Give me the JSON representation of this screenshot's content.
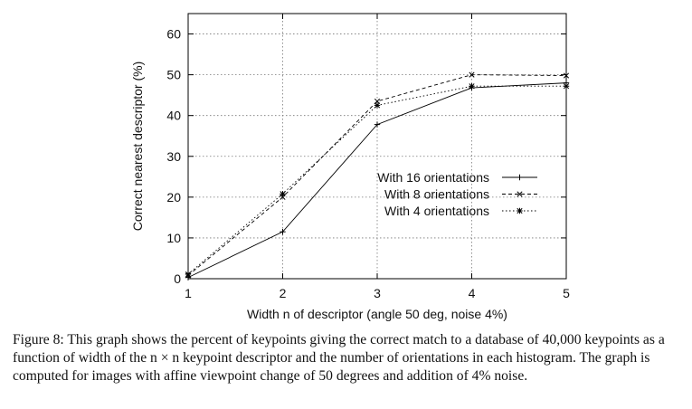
{
  "chart_data": {
    "type": "line",
    "x": [
      1,
      2,
      3,
      4,
      5
    ],
    "xlabel": "Width n of descriptor (angle 50 deg, noise 4%)",
    "ylabel": "Correct nearest descriptor (%)",
    "xlim": [
      1,
      5
    ],
    "ylim": [
      0,
      65
    ],
    "xticks": [
      "1",
      "2",
      "3",
      "4",
      "5"
    ],
    "yticks": [
      "0",
      "10",
      "20",
      "30",
      "40",
      "50",
      "60"
    ],
    "grid": true,
    "legend_position": "center-right",
    "series": [
      {
        "name": "With 16 orientations",
        "values": [
          0.3,
          11.5,
          37.8,
          46.8,
          48.0
        ],
        "dash": "solid",
        "marker": "plus"
      },
      {
        "name": "With 8 orientations",
        "values": [
          0.8,
          20.0,
          43.5,
          50.0,
          49.8
        ],
        "dash": "dashed",
        "marker": "x"
      },
      {
        "name": "With 4 orientations",
        "values": [
          1.1,
          20.8,
          42.5,
          47.2,
          47.2
        ],
        "dash": "dotted",
        "marker": "star"
      }
    ]
  },
  "caption": "Figure 8: This graph shows the percent of keypoints giving the correct match to a database of 40,000 keypoints as a function of width of the n × n keypoint descriptor and the number of orientations in each histogram. The graph is computed for images with affine viewpoint change of 50 degrees and addition of 4% noise."
}
